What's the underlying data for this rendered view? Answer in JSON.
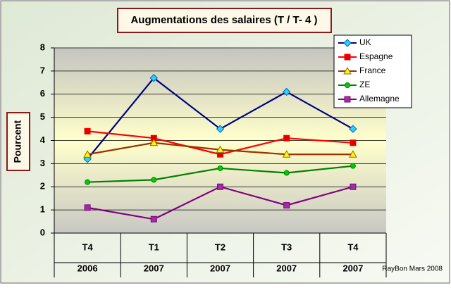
{
  "chart_data": {
    "type": "line",
    "title": "Augmentations des salaires (T / T- 4 )",
    "y_label": "Pourcent",
    "footer": "RayBon Mars 2008",
    "categories": [
      "T4",
      "T1",
      "T2",
      "T3",
      "T4"
    ],
    "category_groups": [
      "2006",
      "2007",
      "2007",
      "2007",
      "2007"
    ],
    "ylim": [
      0,
      8
    ],
    "yticks": [
      0,
      1,
      2,
      3,
      4,
      5,
      6,
      7,
      8
    ],
    "grid": true,
    "legend": "top-right",
    "series": [
      {
        "name": "UK",
        "color": "#000080",
        "marker": "diamond",
        "marker_color": "#33ccff",
        "values": [
          3.2,
          6.7,
          4.5,
          6.1,
          4.5
        ]
      },
      {
        "name": "Espagne",
        "color": "#ff0000",
        "marker": "square",
        "marker_color": "#dd0000",
        "values": [
          4.4,
          4.1,
          3.4,
          4.1,
          3.9
        ]
      },
      {
        "name": "France",
        "color": "#993300",
        "marker": "triangle",
        "marker_color": "#ffff00",
        "values": [
          3.4,
          3.9,
          3.6,
          3.4,
          3.4
        ]
      },
      {
        "name": "ZE",
        "color": "#008000",
        "marker": "circle",
        "marker_color": "#00cc00",
        "values": [
          2.2,
          2.3,
          2.8,
          2.6,
          2.9
        ]
      },
      {
        "name": "Allemagne",
        "color": "#800080",
        "marker": "square",
        "marker_color": "#993399",
        "values": [
          1.1,
          0.6,
          2.0,
          1.2,
          2.0
        ]
      }
    ]
  }
}
